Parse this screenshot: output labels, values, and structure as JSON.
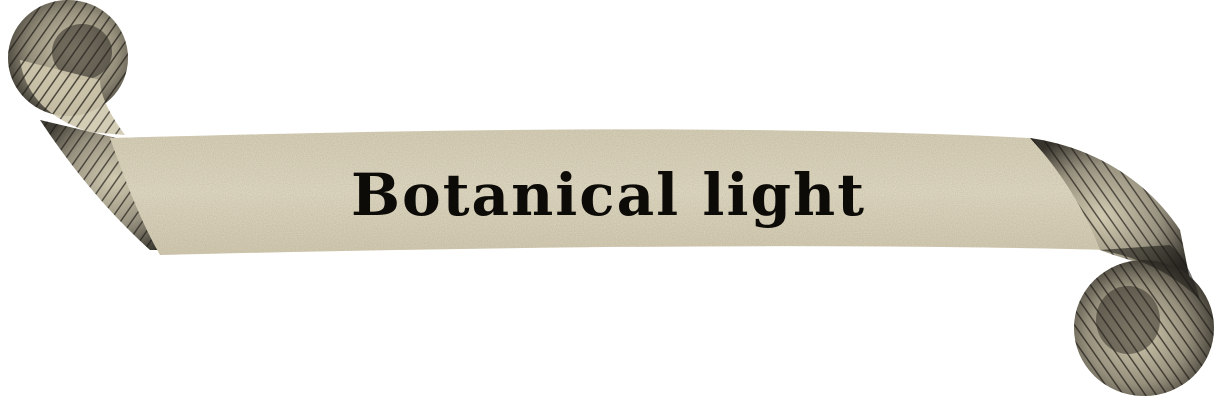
{
  "banner": {
    "text": "Botanical light"
  },
  "colors": {
    "paper": "#e4dcc3",
    "ink": "#0d0b08",
    "shadow": "#2b2822"
  }
}
